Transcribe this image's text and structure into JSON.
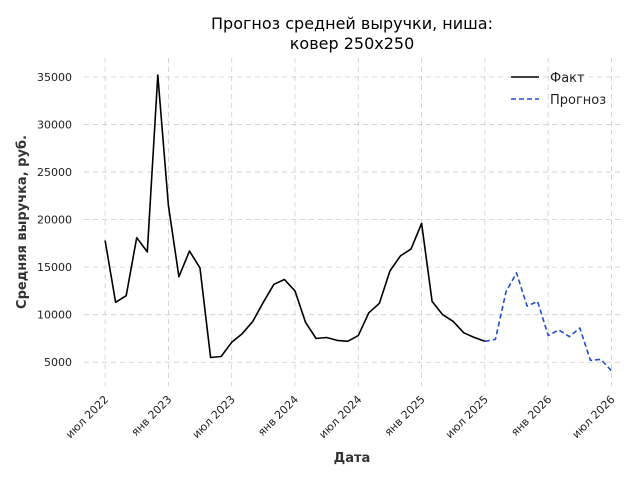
{
  "chart_data": {
    "type": "line",
    "title": "Прогноз средней выручки, ниша:\nковер 250х250",
    "xlabel": "Дата",
    "ylabel": "Средняя выручка, руб.",
    "x_ticks": [
      "июл 2022",
      "янв 2023",
      "июл 2023",
      "янв 2024",
      "июл 2024",
      "янв 2025",
      "июл 2025",
      "янв 2026",
      "июл 2026"
    ],
    "y_ticks": [
      5000,
      10000,
      15000,
      20000,
      25000,
      30000,
      35000
    ],
    "ylim": [
      2500,
      37000
    ],
    "xlim": [
      "2022-05",
      "2026-08"
    ],
    "grid": true,
    "legend_position": "top-right",
    "series": [
      {
        "name": "Факт",
        "color": "#000000",
        "style": "solid",
        "points": [
          [
            "2022-07",
            17800
          ],
          [
            "2022-08",
            11300
          ],
          [
            "2022-09",
            12000
          ],
          [
            "2022-10",
            18100
          ],
          [
            "2022-11",
            16600
          ],
          [
            "2022-12",
            35200
          ],
          [
            "2023-01",
            21500
          ],
          [
            "2023-02",
            14000
          ],
          [
            "2023-03",
            16700
          ],
          [
            "2023-04",
            14900
          ],
          [
            "2023-05",
            5500
          ],
          [
            "2023-06",
            5600
          ],
          [
            "2023-07",
            7100
          ],
          [
            "2023-08",
            8000
          ],
          [
            "2023-09",
            9300
          ],
          [
            "2023-10",
            11300
          ],
          [
            "2023-11",
            13200
          ],
          [
            "2023-12",
            13700
          ],
          [
            "2024-01",
            12500
          ],
          [
            "2024-02",
            9200
          ],
          [
            "2024-03",
            7500
          ],
          [
            "2024-04",
            7600
          ],
          [
            "2024-05",
            7300
          ],
          [
            "2024-06",
            7200
          ],
          [
            "2024-07",
            7800
          ],
          [
            "2024-08",
            10200
          ],
          [
            "2024-09",
            11200
          ],
          [
            "2024-10",
            14600
          ],
          [
            "2024-11",
            16200
          ],
          [
            "2024-12",
            16900
          ],
          [
            "2025-01",
            19600
          ],
          [
            "2025-02",
            11400
          ],
          [
            "2025-03",
            10000
          ],
          [
            "2025-04",
            9300
          ],
          [
            "2025-05",
            8100
          ],
          [
            "2025-06",
            7600
          ],
          [
            "2025-07",
            7200
          ]
        ]
      },
      {
        "name": "Прогноз",
        "color": "#1f4fcc",
        "style": "dashed",
        "points": [
          [
            "2025-07",
            7200
          ],
          [
            "2025-08",
            7400
          ],
          [
            "2025-09",
            12400
          ],
          [
            "2025-10",
            14400
          ],
          [
            "2025-11",
            10900
          ],
          [
            "2025-12",
            11400
          ],
          [
            "2026-01",
            7800
          ],
          [
            "2026-02",
            8400
          ],
          [
            "2026-03",
            7700
          ],
          [
            "2026-04",
            8600
          ],
          [
            "2026-05",
            5200
          ],
          [
            "2026-06",
            5300
          ],
          [
            "2026-07",
            4100
          ]
        ]
      }
    ]
  }
}
